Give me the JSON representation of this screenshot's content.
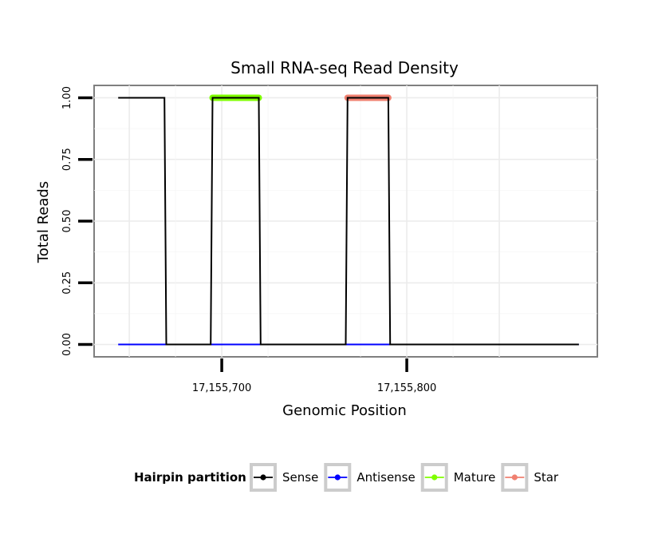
{
  "chart_data": {
    "type": "line",
    "title": "Small RNA-seq Read Density",
    "xlabel": "Genomic Position",
    "ylabel": "Total Reads",
    "xlim": [
      17155631,
      17155903
    ],
    "ylim": [
      -0.05,
      1.05
    ],
    "x_ticks": [
      17155700,
      17155800
    ],
    "x_tick_labels": [
      "17,155,700",
      "17,155,800"
    ],
    "y_ticks": [
      0,
      0.25,
      0.5,
      0.75,
      1.0
    ],
    "y_tick_labels": [
      "0.00",
      "0.25",
      "0.50",
      "0.75",
      "1.00"
    ],
    "grid": true,
    "legend_placement": "bottom",
    "series": [
      {
        "name": "Sense",
        "color": "#000000",
        "x": [
          17155644,
          17155669,
          17155670,
          17155694,
          17155695,
          17155720,
          17155721,
          17155767,
          17155768,
          17155790,
          17155791,
          17155893
        ],
        "values": [
          1,
          1,
          0,
          0,
          1,
          1,
          0,
          0,
          1,
          1,
          0,
          0
        ]
      },
      {
        "name": "Antisense",
        "color": "#0000ff",
        "x": [
          17155644,
          17155893
        ],
        "values": [
          0,
          0
        ]
      },
      {
        "name": "Mature",
        "color": "#7fff00",
        "x": [
          17155695,
          17155720
        ],
        "values": [
          1,
          1
        ]
      },
      {
        "name": "Star",
        "color": "#f08070",
        "x": [
          17155768,
          17155790
        ],
        "values": [
          1,
          1
        ]
      }
    ]
  },
  "legend": {
    "title": "Hairpin partition",
    "items": [
      "Sense",
      "Antisense",
      "Mature",
      "Star"
    ]
  }
}
